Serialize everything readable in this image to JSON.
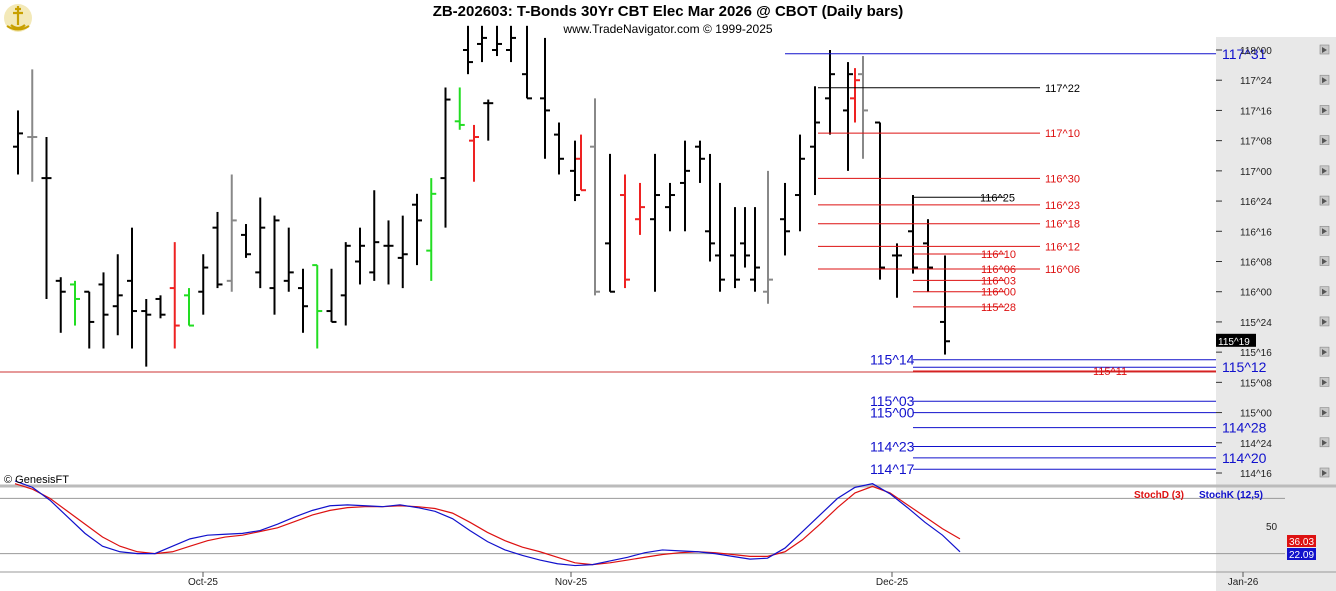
{
  "header": {
    "title": "ZB-202603:  T-Bonds 30Yr CBT Elec Mar 2026 @ CBOT  (Daily bars)",
    "subtitle": "www.TradeNavigator.com © 1999-2025",
    "copyright": "© GenesisFT"
  },
  "chart_data": [
    {
      "type": "ohlc",
      "title": "ZB-202603:  T-Bonds 30Yr CBT Elec Mar 2026 @ CBOT  (Daily bars)",
      "y_unit": "points (32nds)",
      "ylim": [
        114.4375,
        118.125
      ],
      "y_ticks": [
        "118^00",
        "117^24",
        "117^16",
        "117^08",
        "117^00",
        "116^24",
        "116^16",
        "116^08",
        "116^00",
        "115^24",
        "115^16",
        "115^08",
        "115^00",
        "114^24",
        "114^16"
      ],
      "x_ticks": [
        "Oct-25",
        "Nov-25",
        "Dec-25",
        "Jan-26"
      ],
      "last_price_label": "115^19",
      "bars": [
        {
          "h": 117.5,
          "l": 116.97,
          "o": 117.2,
          "c": 117.31,
          "color": "#000000"
        },
        {
          "h": 117.84,
          "l": 116.91,
          "o": 117.28,
          "c": 117.28,
          "color": "#888888"
        },
        {
          "h": 117.28,
          "l": 115.94,
          "o": 116.94,
          "c": 116.94,
          "color": "#000000"
        },
        {
          "h": 116.12,
          "l": 115.66,
          "o": 116.09,
          "c": 116.0,
          "color": "#000000"
        },
        {
          "h": 116.09,
          "l": 115.72,
          "o": 116.06,
          "c": 115.94,
          "color": "#22dd22"
        },
        {
          "h": 116.0,
          "l": 115.53,
          "o": 116.0,
          "c": 115.75,
          "color": "#000000"
        },
        {
          "h": 116.16,
          "l": 115.53,
          "o": 116.06,
          "c": 115.81,
          "color": "#000000"
        },
        {
          "h": 116.31,
          "l": 115.64,
          "o": 115.88,
          "c": 115.97,
          "color": "#000000"
        },
        {
          "h": 116.53,
          "l": 115.53,
          "o": 116.09,
          "c": 115.84,
          "color": "#000000"
        },
        {
          "h": 115.94,
          "l": 115.38,
          "o": 115.84,
          "c": 115.81,
          "color": "#000000"
        },
        {
          "h": 115.97,
          "l": 115.78,
          "o": 115.94,
          "c": 115.81,
          "color": "#000000"
        },
        {
          "h": 116.41,
          "l": 115.53,
          "o": 116.03,
          "c": 115.72,
          "color": "#ee2222"
        },
        {
          "h": 116.03,
          "l": 115.72,
          "o": 115.97,
          "c": 115.72,
          "color": "#22dd22"
        },
        {
          "h": 116.31,
          "l": 115.81,
          "o": 116.0,
          "c": 116.2,
          "color": "#000000"
        },
        {
          "h": 116.66,
          "l": 116.03,
          "o": 116.53,
          "c": 116.06,
          "color": "#000000"
        },
        {
          "h": 116.97,
          "l": 116.0,
          "o": 116.09,
          "c": 116.59,
          "color": "#888888"
        },
        {
          "h": 116.56,
          "l": 116.28,
          "o": 116.47,
          "c": 116.31,
          "color": "#000000"
        },
        {
          "h": 116.78,
          "l": 116.03,
          "o": 116.16,
          "c": 116.53,
          "color": "#000000"
        },
        {
          "h": 116.63,
          "l": 115.81,
          "o": 116.03,
          "c": 116.59,
          "color": "#000000"
        },
        {
          "h": 116.53,
          "l": 116.0,
          "o": 116.09,
          "c": 116.16,
          "color": "#000000"
        },
        {
          "h": 116.19,
          "l": 115.66,
          "o": 116.03,
          "c": 115.88,
          "color": "#000000"
        },
        {
          "h": 116.22,
          "l": 115.53,
          "o": 116.22,
          "c": 115.84,
          "color": "#22dd22"
        },
        {
          "h": 116.19,
          "l": 115.75,
          "o": 115.84,
          "c": 115.75,
          "color": "#000000"
        },
        {
          "h": 116.41,
          "l": 115.72,
          "o": 115.97,
          "c": 116.38,
          "color": "#000000"
        },
        {
          "h": 116.53,
          "l": 116.06,
          "o": 116.25,
          "c": 116.38,
          "color": "#000000"
        },
        {
          "h": 116.84,
          "l": 116.09,
          "o": 116.16,
          "c": 116.41,
          "color": "#000000"
        },
        {
          "h": 116.59,
          "l": 116.06,
          "o": 116.38,
          "c": 116.38,
          "color": "#000000"
        },
        {
          "h": 116.63,
          "l": 116.03,
          "o": 116.28,
          "c": 116.31,
          "color": "#000000"
        },
        {
          "h": 116.81,
          "l": 116.22,
          "o": 116.72,
          "c": 116.59,
          "color": "#000000"
        },
        {
          "h": 116.94,
          "l": 116.09,
          "o": 116.34,
          "c": 116.81,
          "color": "#22dd22"
        },
        {
          "h": 117.69,
          "l": 116.53,
          "o": 116.94,
          "c": 117.59,
          "color": "#000000"
        },
        {
          "h": 117.69,
          "l": 117.34,
          "o": 117.41,
          "c": 117.38,
          "color": "#22dd22"
        },
        {
          "h": 117.38,
          "l": 116.91,
          "o": 117.25,
          "c": 117.28,
          "color": "#ee2222"
        },
        {
          "h": 117.59,
          "l": 117.25,
          "o": 117.56,
          "c": 117.56,
          "color": "#000000"
        }
      ],
      "support_resistance_levels": [
        {
          "label": "117^31",
          "value": 117.96875,
          "color": "#1111cc"
        },
        {
          "label": "117^22",
          "value": 117.6875,
          "color": "#000000"
        },
        {
          "label": "117^10",
          "value": 117.3125,
          "color": "#dd1111"
        },
        {
          "label": "116^30",
          "value": 116.9375,
          "color": "#dd1111"
        },
        {
          "label": "116^25",
          "value": 116.78125,
          "color": "#000000"
        },
        {
          "label": "116^23",
          "value": 116.71875,
          "color": "#dd1111"
        },
        {
          "label": "116^18",
          "value": 116.5625,
          "color": "#dd1111"
        },
        {
          "label": "116^12",
          "value": 116.375,
          "color": "#dd1111"
        },
        {
          "label": "116^10",
          "value": 116.3125,
          "color": "#dd1111"
        },
        {
          "label": "116^06",
          "value": 116.1875,
          "color": "#dd1111"
        },
        {
          "label": "116^03",
          "value": 116.09375,
          "color": "#dd1111"
        },
        {
          "label": "116^00",
          "value": 116.0,
          "color": "#dd1111"
        },
        {
          "label": "115^28",
          "value": 115.875,
          "color": "#dd1111"
        },
        {
          "label": "115^14",
          "value": 115.4375,
          "color": "#1111cc"
        },
        {
          "label": "115^12",
          "value": 115.375,
          "color": "#1111cc"
        },
        {
          "label": "115^11",
          "value": 115.34375,
          "color": "#dd1111"
        },
        {
          "label": "115^03",
          "value": 115.09375,
          "color": "#1111cc"
        },
        {
          "label": "115^00",
          "value": 115.0,
          "color": "#1111cc"
        },
        {
          "label": "114^28",
          "value": 114.875,
          "color": "#1111cc"
        },
        {
          "label": "114^23",
          "value": 114.71875,
          "color": "#1111cc"
        },
        {
          "label": "114^20",
          "value": 114.625,
          "color": "#1111cc"
        },
        {
          "label": "114^17",
          "value": 114.53125,
          "color": "#1111cc"
        }
      ]
    },
    {
      "type": "line",
      "ylim": [
        0,
        100
      ],
      "y_ticks": [
        50
      ],
      "reference_lines": [
        80,
        20
      ],
      "series": [
        {
          "name": "StochD (3)",
          "color": "#dd1111",
          "last_label": "36.03",
          "values": [
            96,
            90,
            80,
            66,
            52,
            38,
            28,
            22,
            20,
            22,
            28,
            34,
            38,
            40,
            44,
            48,
            55,
            62,
            67,
            70,
            71,
            71,
            72,
            71,
            69,
            64,
            54,
            43,
            34,
            27,
            22,
            16,
            10,
            8,
            10,
            13,
            16,
            19,
            21,
            22,
            21,
            19,
            17,
            17,
            22,
            35,
            52,
            70,
            86,
            93,
            86,
            73,
            60,
            47,
            36
          ]
        },
        {
          "name": "StochK (12,5)",
          "color": "#1111cc",
          "last_label": "22.09",
          "values": [
            99,
            92,
            78,
            60,
            42,
            28,
            22,
            20,
            20,
            28,
            36,
            40,
            41,
            42,
            45,
            52,
            60,
            67,
            72,
            73,
            72,
            71,
            73,
            70,
            66,
            58,
            45,
            33,
            24,
            18,
            13,
            9,
            7,
            8,
            12,
            16,
            21,
            24,
            23,
            22,
            20,
            17,
            14,
            15,
            26,
            44,
            62,
            80,
            92,
            96,
            85,
            70,
            54,
            40,
            22
          ]
        }
      ]
    }
  ]
}
